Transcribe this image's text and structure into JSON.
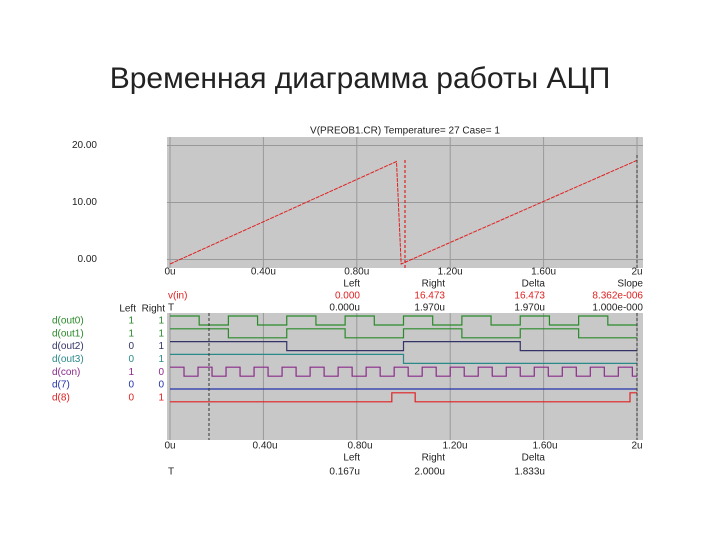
{
  "title": "Временная диаграмма работы АЦП",
  "chart_data": {
    "type": "line",
    "title": "V(PREOB1.CR) Temperature= 27 Case= 1",
    "x": [
      0,
      0.97,
      0.99,
      2
    ],
    "series": [
      {
        "name": "v(in)",
        "color": "#e02020",
        "values": [
          -0.8,
          17.2,
          -0.8,
          17.4
        ]
      }
    ],
    "xlim": [
      0,
      2
    ],
    "ylim": [
      -1.5,
      21.5
    ],
    "xticks": [
      {
        "value": 0,
        "label": "0u"
      },
      {
        "value": 0.4,
        "label": "0.40u"
      },
      {
        "value": 0.8,
        "label": "0.80u"
      },
      {
        "value": 1.2,
        "label": "1.20u"
      },
      {
        "value": 1.6,
        "label": "1.60u"
      },
      {
        "value": 2,
        "label": "2u"
      }
    ],
    "yticks": [
      {
        "value": 0,
        "label": "0.00"
      },
      {
        "value": 10,
        "label": "10.00"
      },
      {
        "value": 20,
        "label": "20.00"
      }
    ],
    "grid": true
  },
  "readout": {
    "header": [
      "Left",
      "Right",
      "Delta",
      "Slope"
    ],
    "rows": [
      [
        "v(in)",
        "0.000",
        "16.473",
        "16.473",
        "8.362e-006"
      ],
      [
        "T",
        "0.000u",
        "1.970u",
        "1.970u",
        "1.000e-000"
      ]
    ]
  },
  "digital": {
    "header": [
      "Left",
      "Right"
    ],
    "signals": [
      [
        "d(out0)",
        "1",
        "1"
      ],
      [
        "d(out1)",
        "1",
        "1"
      ],
      [
        "d(out2)",
        "0",
        "1"
      ],
      [
        "d(out3)",
        "0",
        "1"
      ],
      [
        "d(con)",
        "1",
        "0"
      ],
      [
        "d(7)",
        "0",
        "0"
      ],
      [
        "d(8)",
        "0",
        "1"
      ]
    ],
    "xticks": [
      "0u",
      "0.40u",
      "0.80u",
      "1.20u",
      "1.60u",
      "2u"
    ],
    "readout_header": [
      "Left",
      "Right",
      "Delta"
    ],
    "readout_row": [
      "T",
      "0.167u",
      "2.000u",
      "1.833u"
    ]
  }
}
